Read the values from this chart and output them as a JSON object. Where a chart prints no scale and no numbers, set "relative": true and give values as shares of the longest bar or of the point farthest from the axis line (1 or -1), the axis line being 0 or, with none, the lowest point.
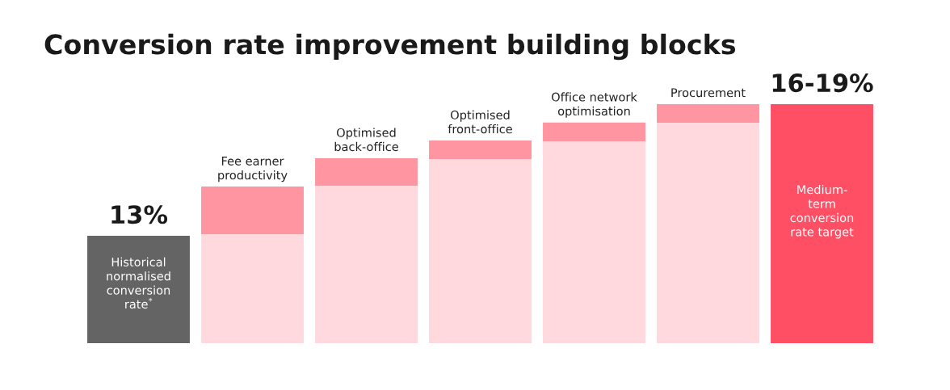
{
  "chart_data": {
    "type": "bar",
    "title": "Conversion rate improvement building blocks",
    "relative": true,
    "stacked": true,
    "annotations": [
      {
        "text": "13%",
        "x": "Historical\nnormalised\nconversion\nrate$^{*}$",
        "y": 0.449
      },
      {
        "text": "16-19%",
        "x": "Medium-\nterm\nconversion\nrate target",
        "y": 1.0
      }
    ],
    "categories": [
      "Historical\nnormalised\nconversion\nrate$^{*}$",
      "Fee earner\nproductivity",
      "Optimised\nback-office",
      "Optimised\nfront-office",
      "Office network\noptimisation",
      "Procurement",
      "Medium-\nterm\nconversion\nrate target"
    ],
    "series": [
      {
        "colors": [
          "#646464",
          "#ffd9de",
          "#ffd9de",
          "#ffd9de",
          "#ffd9de",
          "#ffd9de",
          "#ff4f64"
        ],
        "values": [
          0.449,
          0.456,
          0.659,
          0.77,
          0.845,
          0.922,
          1.0
        ]
      },
      {
        "color": "#ff95a0",
        "values": [
          null,
          0.199,
          0.115,
          0.078,
          0.078,
          0.078,
          null
        ]
      }
    ]
  }
}
